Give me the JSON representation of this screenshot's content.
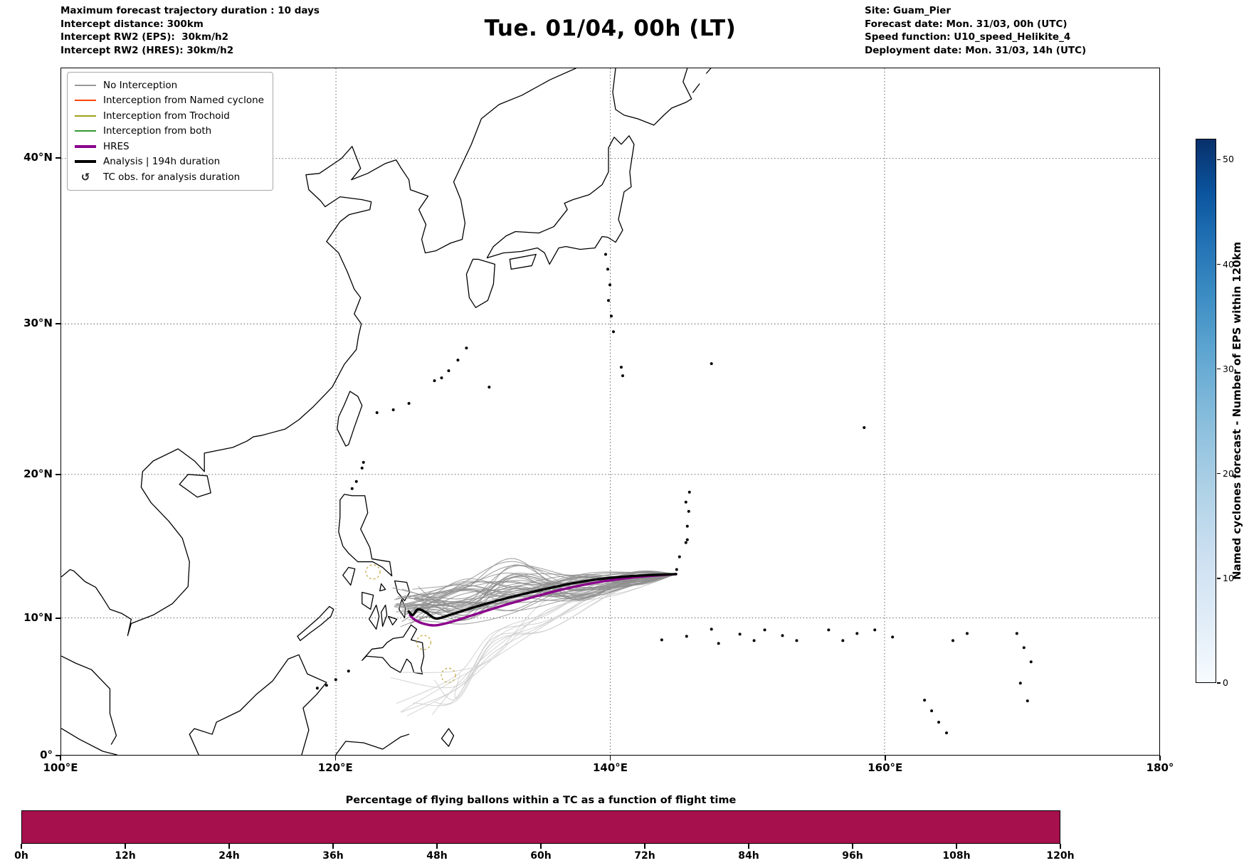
{
  "header": {
    "left_lines": [
      "Maximum forecast trajectory duration : 10 days",
      "Intercept distance: 300km",
      "Intercept RW2 (EPS):  30km/h2",
      "Intercept RW2 (HRES): 30km/h2"
    ],
    "title": "Tue. 01/04, 00h (LT)",
    "right_lines": [
      "Site: Guam_Pier",
      "Forecast date: Mon. 31/03, 00h (UTC)",
      "Speed function: U10_speed_Helikite_4",
      "Deployment date: Mon. 31/03, 14h (UTC)"
    ]
  },
  "legend": {
    "items": [
      {
        "label": "No Interception",
        "type": "line",
        "color": "#999999",
        "lineWidth": 1.6
      },
      {
        "label": "Interception from Named cyclone",
        "type": "line",
        "color": "#ff4500",
        "lineWidth": 1.6
      },
      {
        "label": "Interception from Trochoid",
        "type": "line",
        "color": "#a2a019",
        "lineWidth": 1.6
      },
      {
        "label": "Interception from both",
        "type": "line",
        "color": "#339933",
        "lineWidth": 1.6
      },
      {
        "label": "HRES",
        "type": "line",
        "color": "#8b008b",
        "lineWidth": 4
      },
      {
        "label": "Analysis | 194h duration",
        "type": "line",
        "color": "#000000",
        "lineWidth": 4
      },
      {
        "label": "TC obs. for analysis duration",
        "type": "symbol",
        "symbol": "↺",
        "color": "#222222"
      }
    ]
  },
  "map_axes": {
    "x_ticks": [
      {
        "label": "100°E",
        "lon": 100
      },
      {
        "label": "120°E",
        "lon": 120
      },
      {
        "label": "140°E",
        "lon": 140
      },
      {
        "label": "160°E",
        "lon": 160
      },
      {
        "label": "180°",
        "lon": 180
      }
    ],
    "y_ticks": [
      {
        "label": "0°",
        "lat": 0
      },
      {
        "label": "10°N",
        "lat": 10
      },
      {
        "label": "20°N",
        "lat": 20
      },
      {
        "label": "30°N",
        "lat": 30
      },
      {
        "label": "40°N",
        "lat": 40
      }
    ],
    "grid_lons": [
      120,
      140,
      160
    ],
    "grid_lats": [
      10,
      20,
      30,
      40
    ]
  },
  "colorbar": {
    "label": "Named cyclones forecast - Number of EPS within 120km",
    "ticks": [
      0,
      10,
      20,
      30,
      40,
      50
    ],
    "vmin": 0,
    "vmax": 52,
    "color_min": "#f7fbff",
    "color_max": "#08306b"
  },
  "bottom_chart": {
    "title": "Percentage of flying ballons within a TC as a function of flight time",
    "x_ticks": [
      "0h",
      "12h",
      "24h",
      "36h",
      "48h",
      "60h",
      "72h",
      "84h",
      "96h",
      "108h",
      "120h"
    ],
    "bar_color": "#a6104c"
  },
  "chart_data": [
    {
      "type": "line",
      "title": "Tue. 01/04, 00h (LT)",
      "description": "Balloon trajectory forecast map over the Western Pacific; ensemble trajectories run westward from Guam (~144.8E, 13N) toward the Philippines (~125.5E, 10N).",
      "xlim": [
        100,
        180
      ],
      "ylim": [
        0,
        45.5
      ],
      "x_ticks": [
        "100°E",
        "120°E",
        "140°E",
        "160°E",
        "180°"
      ],
      "y_ticks": [
        "0°",
        "10°N",
        "20°N",
        "30°N",
        "40°N"
      ],
      "grid": true,
      "legend_position": "upper left",
      "series": [
        {
          "name": "EPS members long/faded",
          "kind": "faded",
          "color": "#cbcbcb",
          "width": 1.0,
          "count": 11,
          "seed": 29,
          "start": [
            144.8,
            13.05
          ],
          "end_lon_range": [
            123.5,
            129.5
          ],
          "end_lat_range": [
            2.5,
            6.5
          ]
        },
        {
          "name": "EPS members (No Interception)",
          "kind": "spread",
          "color": "#8f8f8f",
          "width": 1.1,
          "count": 46,
          "seed": 13,
          "start": [
            144.8,
            13.05
          ],
          "end_lon_range": [
            124.0,
            126.3
          ],
          "end_lat_range": [
            9.2,
            12.3
          ],
          "mid_lat_range_133E": [
            10.2,
            14.2
          ],
          "mid_lat_range_129E": [
            9.4,
            13.0
          ]
        },
        {
          "name": "HRES",
          "color": "#8b008b",
          "width": 3.4,
          "points": [
            [
              144.8,
              13.05
            ],
            [
              142.0,
              12.85
            ],
            [
              139.2,
              12.5
            ],
            [
              136.6,
              12.0
            ],
            [
              134.2,
              11.4
            ],
            [
              132.0,
              10.8
            ],
            [
              130.0,
              10.2
            ],
            [
              128.4,
              9.7
            ],
            [
              127.2,
              9.45
            ],
            [
              126.3,
              9.6
            ],
            [
              125.7,
              9.9
            ],
            [
              125.4,
              10.2
            ]
          ]
        },
        {
          "name": "Analysis | 194h duration",
          "color": "#000000",
          "width": 3.4,
          "points": [
            [
              144.8,
              13.05
            ],
            [
              142.2,
              12.95
            ],
            [
              139.6,
              12.75
            ],
            [
              137.2,
              12.4
            ],
            [
              135.0,
              11.95
            ],
            [
              133.0,
              11.5
            ],
            [
              131.2,
              11.05
            ],
            [
              129.6,
              10.6
            ],
            [
              128.3,
              10.2
            ],
            [
              127.3,
              9.95
            ],
            [
              126.6,
              10.35
            ],
            [
              126.0,
              10.6
            ],
            [
              125.6,
              10.2
            ],
            [
              125.3,
              10.45
            ]
          ]
        }
      ],
      "tc_obs_markers": {
        "color": "#c9b45c",
        "positions": [
          [
            122.7,
            13.2
          ],
          [
            126.4,
            8.2
          ],
          [
            128.2,
            5.8
          ]
        ]
      }
    },
    {
      "type": "bar",
      "title": "Percentage of flying ballons within a TC as a function of flight time",
      "x_ticks": [
        "0h",
        "12h",
        "24h",
        "36h",
        "48h",
        "60h",
        "72h",
        "84h",
        "96h",
        "108h",
        "120h"
      ],
      "x_range_hours": [
        0,
        120
      ],
      "bar_color": "#a6104c",
      "values_note": "solid uniform filled band across the full 0-120h range; no y-axis scale shown"
    },
    {
      "type": "colorbar",
      "label": "Named cyclones forecast - Number of EPS within 120km",
      "ticks": [
        0,
        10,
        20,
        30,
        40,
        50
      ],
      "range": [
        0,
        52
      ],
      "colormap": "Blues"
    }
  ]
}
